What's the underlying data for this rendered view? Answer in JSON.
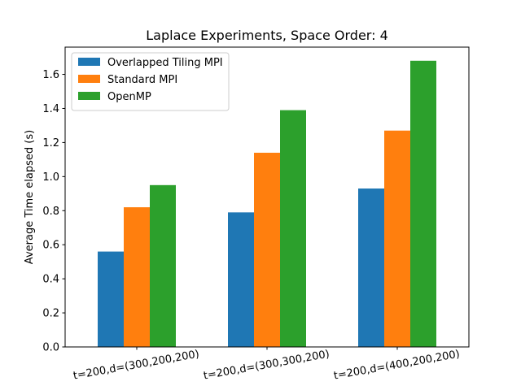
{
  "chart_data": {
    "type": "bar",
    "title": "Laplace Experiments, Space Order: 4",
    "xlabel": "",
    "ylabel": "Average Time elapsed (s)",
    "categories": [
      "t=200,d=(300,200,200)",
      "t=200,d=(300,300,200)",
      "t=200,d=(400,200,200)"
    ],
    "series": [
      {
        "name": "Overlapped Tiling MPI",
        "color": "#1f77b4",
        "values": [
          0.56,
          0.79,
          0.93
        ]
      },
      {
        "name": "Standard MPI",
        "color": "#ff7f0e",
        "values": [
          0.82,
          1.14,
          1.27
        ]
      },
      {
        "name": "OpenMP",
        "color": "#2ca02c",
        "values": [
          0.95,
          1.39,
          1.68
        ]
      }
    ],
    "ylim": [
      0,
      1.76
    ],
    "yticks": [
      "0.0",
      "0.2",
      "0.4",
      "0.6",
      "0.8",
      "1.0",
      "1.2",
      "1.4",
      "1.6"
    ],
    "grid": false,
    "legend_position": "top-left"
  }
}
